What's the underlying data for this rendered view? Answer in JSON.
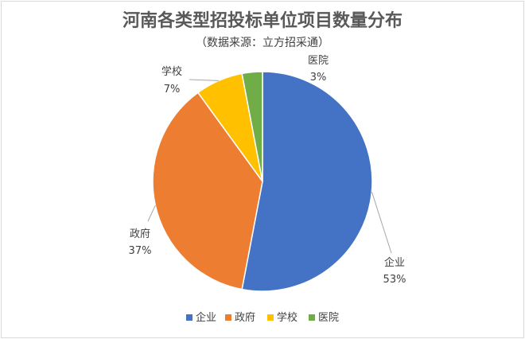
{
  "chart_data": {
    "type": "pie",
    "title": "河南各类型招投标单位项目数量分布",
    "subtitle": "（数据来源：立方招采通）",
    "categories": [
      "企业",
      "政府",
      "学校",
      "医院"
    ],
    "values": [
      53,
      37,
      7,
      3
    ],
    "value_labels": [
      "53%",
      "37%",
      "7%",
      "3%"
    ],
    "colors": [
      "#4472C4",
      "#ED7D31",
      "#FFC000",
      "#70AD47"
    ],
    "legend": {
      "position": "bottom",
      "entries": [
        "企业",
        "政府",
        "学校",
        "医院"
      ]
    },
    "start_angle": "12 o'clock",
    "direction": "clockwise"
  }
}
